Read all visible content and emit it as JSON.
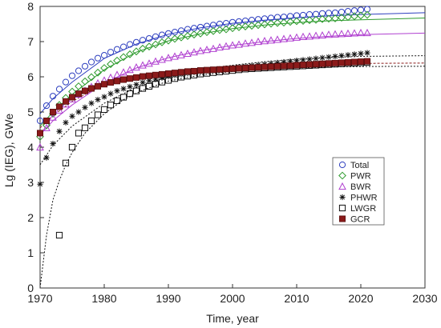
{
  "chart_data": {
    "type": "scatter",
    "title": "",
    "xlabel": "Time, year",
    "ylabel": "Lg (IEG), GWe",
    "xlim": [
      1970,
      2030
    ],
    "ylim": [
      0,
      8
    ],
    "x_ticks": [
      1970,
      1980,
      1990,
      2000,
      2010,
      2020,
      2030
    ],
    "y_ticks": [
      0,
      1,
      2,
      3,
      4,
      5,
      6,
      7,
      8
    ],
    "grid": false,
    "legend_position": "right",
    "x": [
      1970,
      1971,
      1972,
      1973,
      1974,
      1975,
      1976,
      1977,
      1978,
      1979,
      1980,
      1981,
      1982,
      1983,
      1984,
      1985,
      1986,
      1987,
      1988,
      1989,
      1990,
      1991,
      1992,
      1993,
      1994,
      1995,
      1996,
      1997,
      1998,
      1999,
      2000,
      2001,
      2002,
      2003,
      2004,
      2005,
      2006,
      2007,
      2008,
      2009,
      2010,
      2011,
      2012,
      2013,
      2014,
      2015,
      2016,
      2017,
      2018,
      2019,
      2020,
      2021
    ],
    "series": [
      {
        "name": "Total",
        "marker": "circle",
        "color": "#2e3fbf",
        "values": [
          4.75,
          5.18,
          5.45,
          5.65,
          5.85,
          6.03,
          6.17,
          6.3,
          6.42,
          6.53,
          6.61,
          6.7,
          6.78,
          6.85,
          6.92,
          6.98,
          7.04,
          7.09,
          7.14,
          7.19,
          7.23,
          7.27,
          7.31,
          7.35,
          7.38,
          7.41,
          7.44,
          7.47,
          7.5,
          7.52,
          7.55,
          7.57,
          7.59,
          7.61,
          7.63,
          7.65,
          7.67,
          7.69,
          7.7,
          7.72,
          7.74,
          7.75,
          7.77,
          7.78,
          7.8,
          7.81,
          7.82,
          7.84,
          7.86,
          7.88,
          7.9,
          7.92
        ],
        "fit": {
          "x": [
            1970,
            1972,
            1975,
            1980,
            1985,
            1990,
            1995,
            2000,
            2005,
            2010,
            2015,
            2020,
            2030
          ],
          "y": [
            4.95,
            5.38,
            5.85,
            6.52,
            6.93,
            7.21,
            7.39,
            7.52,
            7.61,
            7.68,
            7.73,
            7.77,
            7.82
          ]
        }
      },
      {
        "name": "PWR",
        "marker": "diamond",
        "color": "#2e9b2e",
        "values": [
          4.3,
          4.62,
          4.95,
          5.2,
          5.4,
          5.58,
          5.73,
          5.87,
          5.99,
          6.12,
          6.25,
          6.36,
          6.46,
          6.56,
          6.64,
          6.72,
          6.8,
          6.86,
          6.92,
          6.98,
          7.03,
          7.08,
          7.12,
          7.16,
          7.2,
          7.23,
          7.27,
          7.3,
          7.33,
          7.35,
          7.38,
          7.41,
          7.43,
          7.45,
          7.47,
          7.49,
          7.51,
          7.53,
          7.54,
          7.56,
          7.58,
          7.59,
          7.61,
          7.62,
          7.64,
          7.65,
          7.66,
          7.68,
          7.7,
          7.72,
          7.74,
          7.76
        ],
        "fit": {
          "x": [
            1970,
            1972,
            1975,
            1980,
            1985,
            1990,
            1995,
            2000,
            2005,
            2010,
            2015,
            2020,
            2030
          ],
          "y": [
            4.6,
            5.0,
            5.5,
            6.2,
            6.7,
            7.02,
            7.22,
            7.37,
            7.47,
            7.54,
            7.59,
            7.62,
            7.67
          ]
        }
      },
      {
        "name": "BWR",
        "marker": "triangle",
        "color": "#b040d0",
        "values": [
          4.0,
          4.55,
          4.85,
          5.05,
          5.22,
          5.37,
          5.5,
          5.61,
          5.72,
          5.82,
          5.9,
          5.98,
          6.06,
          6.13,
          6.2,
          6.27,
          6.33,
          6.38,
          6.44,
          6.49,
          6.54,
          6.58,
          6.62,
          6.66,
          6.7,
          6.74,
          6.77,
          6.8,
          6.84,
          6.87,
          6.9,
          6.92,
          6.95,
          6.97,
          7.0,
          7.02,
          7.04,
          7.06,
          7.08,
          7.1,
          7.12,
          7.14,
          7.15,
          7.17,
          7.18,
          7.2,
          7.21,
          7.22,
          7.23,
          7.24,
          7.25,
          7.25
        ],
        "fit": {
          "x": [
            1970,
            1972,
            1975,
            1980,
            1985,
            1990,
            1995,
            2000,
            2005,
            2010,
            2015,
            2020,
            2030
          ],
          "y": [
            4.35,
            4.75,
            5.2,
            5.82,
            6.25,
            6.54,
            6.74,
            6.89,
            7.0,
            7.09,
            7.15,
            7.2,
            7.24
          ]
        }
      },
      {
        "name": "PHWR",
        "marker": "asterisk",
        "color": "#111111",
        "values": [
          2.95,
          3.7,
          4.1,
          4.45,
          4.7,
          4.88,
          5.0,
          5.13,
          5.25,
          5.35,
          5.43,
          5.52,
          5.6,
          5.66,
          5.72,
          5.78,
          5.84,
          5.89,
          5.93,
          5.97,
          6.01,
          6.04,
          6.07,
          6.1,
          6.13,
          6.15,
          6.18,
          6.2,
          6.22,
          6.24,
          6.26,
          6.28,
          6.3,
          6.32,
          6.34,
          6.36,
          6.38,
          6.4,
          6.42,
          6.44,
          6.46,
          6.48,
          6.5,
          6.52,
          6.54,
          6.56,
          6.58,
          6.6,
          6.62,
          6.64,
          6.66,
          6.68
        ],
        "fit": {
          "x": [
            1970,
            1972,
            1975,
            1980,
            1985,
            1990,
            1995,
            2000,
            2005,
            2010,
            2015,
            2020,
            2030
          ],
          "y": [
            3.5,
            4.05,
            4.6,
            5.25,
            5.7,
            6.0,
            6.2,
            6.33,
            6.43,
            6.5,
            6.55,
            6.58,
            6.6
          ]
        }
      },
      {
        "name": "LWGR",
        "marker": "square",
        "color": "#111111",
        "values": [
          null,
          null,
          null,
          1.5,
          3.55,
          4.0,
          4.4,
          4.55,
          4.75,
          4.92,
          5.07,
          5.2,
          5.32,
          5.42,
          5.52,
          5.6,
          5.67,
          5.73,
          5.79,
          5.85,
          5.9,
          5.95,
          5.99,
          6.02,
          6.05,
          6.08,
          6.1,
          6.12,
          6.14,
          6.16,
          6.18,
          6.2,
          6.22,
          6.23,
          6.24,
          6.25,
          6.26,
          6.27,
          6.28,
          6.29,
          6.3,
          6.31,
          6.32,
          6.33,
          6.34,
          6.35,
          6.36,
          6.37,
          6.38,
          6.39,
          6.4,
          6.41
        ],
        "fit": {
          "x": [
            1970,
            1971,
            1972,
            1973,
            1974,
            1975,
            1977,
            1980,
            1983,
            1986,
            1990,
            1995,
            2000,
            2005,
            2010,
            2015,
            2020,
            2030
          ],
          "y": [
            0,
            1.5,
            2.5,
            3.05,
            3.5,
            3.85,
            4.4,
            4.95,
            5.35,
            5.62,
            5.88,
            6.05,
            6.15,
            6.21,
            6.25,
            6.28,
            6.29,
            6.3
          ]
        }
      },
      {
        "name": "GCR",
        "marker": "filled-square",
        "color": "#8b1a1a",
        "values": [
          4.4,
          4.75,
          5.0,
          5.15,
          5.3,
          5.42,
          5.52,
          5.6,
          5.67,
          5.73,
          5.79,
          5.84,
          5.88,
          5.92,
          5.95,
          5.98,
          6.01,
          6.03,
          6.05,
          6.07,
          6.09,
          6.11,
          6.13,
          6.15,
          6.16,
          6.18,
          6.19,
          6.2,
          6.21,
          6.22,
          6.23,
          6.24,
          6.25,
          6.26,
          6.27,
          6.28,
          6.29,
          6.3,
          6.31,
          6.32,
          6.33,
          6.34,
          6.35,
          6.36,
          6.37,
          6.38,
          6.39,
          6.4,
          6.41,
          6.42,
          6.43,
          6.44
        ],
        "fit": {
          "x": [
            1970,
            1972,
            1975,
            1980,
            1985,
            1990,
            1995,
            2000,
            2005,
            2010,
            2015,
            2020,
            2030
          ],
          "y": [
            4.55,
            4.9,
            5.3,
            5.8,
            6.02,
            6.14,
            6.22,
            6.28,
            6.32,
            6.35,
            6.37,
            6.38,
            6.39
          ]
        }
      }
    ]
  }
}
